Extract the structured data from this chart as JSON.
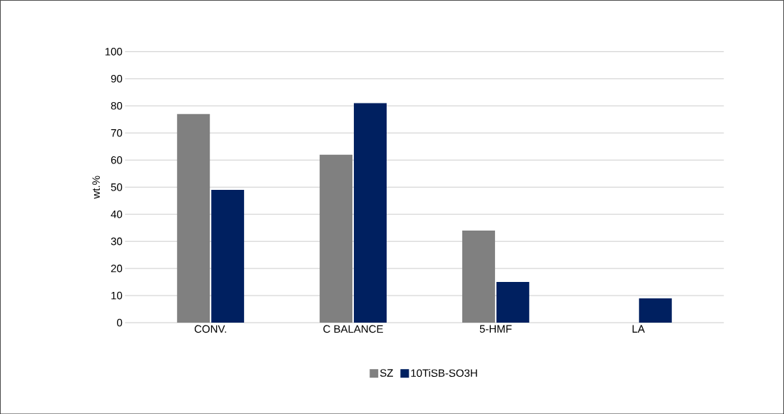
{
  "chart_data": {
    "type": "bar",
    "ylabel": "wt.%",
    "categories": [
      "CONV.",
      "C BALANCE",
      "5-HMF",
      "LA"
    ],
    "series": [
      {
        "name": "SZ",
        "color": "#808080",
        "values": [
          77,
          62,
          34,
          0
        ]
      },
      {
        "name": "10TiSB-SO3H",
        "color": "#002060",
        "values": [
          49,
          81,
          15,
          9
        ]
      }
    ],
    "ylim": [
      0,
      100
    ],
    "yticks": [
      0,
      10,
      20,
      30,
      40,
      50,
      60,
      70,
      80,
      90,
      100
    ],
    "grid": "y",
    "legend": "bottom"
  }
}
